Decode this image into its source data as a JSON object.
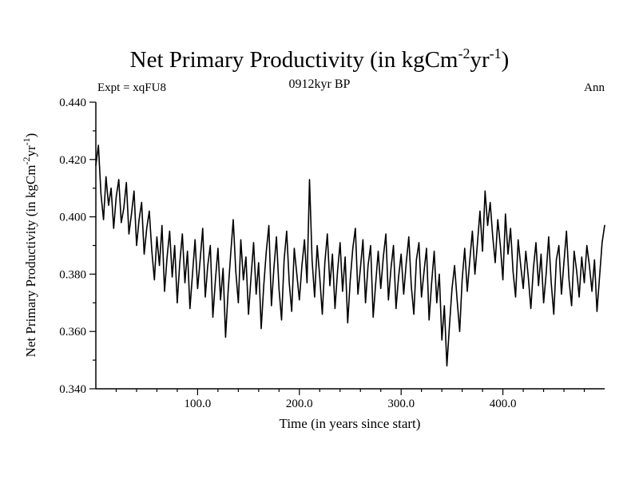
{
  "chart_data": {
    "type": "line",
    "title_parts": {
      "p1": "Net Primary Productivity (in kgCm",
      "sup1": "-2",
      "p2": "yr",
      "sup2": "-1",
      "p3": ")"
    },
    "subtitle": "0912kyr BP",
    "experiment_label": "Expt = xqFU8",
    "period_label": "Ann",
    "xlabel": "Time (in years since start)",
    "ylabel_parts": {
      "p1": "Net Primary Productivity (in kgCm",
      "sup1": "-2",
      "p2": "yr",
      "sup2": "-1",
      "p3": ")"
    },
    "xlim": [
      0,
      500
    ],
    "ylim": [
      0.34,
      0.44
    ],
    "grid": false,
    "legend": "none",
    "x_ticks": [
      100,
      200,
      300,
      400
    ],
    "x_tick_labels": [
      "100.0",
      "200.0",
      "300.0",
      "400.0"
    ],
    "x_minor_step": 20,
    "y_ticks": [
      0.34,
      0.36,
      0.38,
      0.4,
      0.42,
      0.44
    ],
    "y_tick_labels": [
      "0.340",
      "0.360",
      "0.380",
      "0.400",
      "0.420",
      "0.440"
    ],
    "y_minor_step": 0.01,
    "series": [
      {
        "name": "Net Primary Productivity (Ann)",
        "x_start": 0,
        "x_step": 2.5,
        "values": [
          0.418,
          0.425,
          0.408,
          0.399,
          0.414,
          0.404,
          0.41,
          0.396,
          0.407,
          0.413,
          0.398,
          0.403,
          0.412,
          0.394,
          0.401,
          0.409,
          0.39,
          0.399,
          0.405,
          0.387,
          0.396,
          0.402,
          0.388,
          0.378,
          0.393,
          0.383,
          0.397,
          0.374,
          0.386,
          0.395,
          0.379,
          0.39,
          0.37,
          0.384,
          0.394,
          0.377,
          0.388,
          0.368,
          0.38,
          0.392,
          0.375,
          0.385,
          0.396,
          0.372,
          0.383,
          0.39,
          0.365,
          0.378,
          0.389,
          0.371,
          0.382,
          0.358,
          0.374,
          0.387,
          0.399,
          0.381,
          0.37,
          0.392,
          0.378,
          0.386,
          0.366,
          0.379,
          0.391,
          0.373,
          0.384,
          0.361,
          0.376,
          0.388,
          0.397,
          0.369,
          0.382,
          0.393,
          0.375,
          0.364,
          0.385,
          0.395,
          0.377,
          0.367,
          0.389,
          0.38,
          0.371,
          0.383,
          0.392,
          0.377,
          0.413,
          0.385,
          0.372,
          0.39,
          0.379,
          0.366,
          0.384,
          0.394,
          0.376,
          0.387,
          0.368,
          0.381,
          0.391,
          0.374,
          0.386,
          0.363,
          0.378,
          0.389,
          0.396,
          0.373,
          0.382,
          0.392,
          0.37,
          0.383,
          0.39,
          0.365,
          0.377,
          0.388,
          0.375,
          0.386,
          0.394,
          0.371,
          0.382,
          0.39,
          0.368,
          0.379,
          0.387,
          0.373,
          0.384,
          0.393,
          0.376,
          0.366,
          0.385,
          0.391,
          0.372,
          0.381,
          0.389,
          0.364,
          0.377,
          0.388,
          0.37,
          0.38,
          0.357,
          0.369,
          0.348,
          0.362,
          0.375,
          0.383,
          0.371,
          0.36,
          0.378,
          0.389,
          0.374,
          0.385,
          0.395,
          0.38,
          0.391,
          0.402,
          0.388,
          0.409,
          0.397,
          0.405,
          0.393,
          0.384,
          0.399,
          0.39,
          0.378,
          0.401,
          0.387,
          0.396,
          0.381,
          0.372,
          0.392,
          0.383,
          0.375,
          0.388,
          0.379,
          0.368,
          0.382,
          0.391,
          0.376,
          0.387,
          0.37,
          0.38,
          0.393,
          0.377,
          0.366,
          0.385,
          0.39,
          0.373,
          0.384,
          0.395,
          0.378,
          0.369,
          0.388,
          0.381,
          0.372,
          0.386,
          0.377,
          0.39,
          0.383,
          0.374,
          0.385,
          0.367,
          0.379,
          0.391,
          0.397
        ]
      }
    ]
  }
}
